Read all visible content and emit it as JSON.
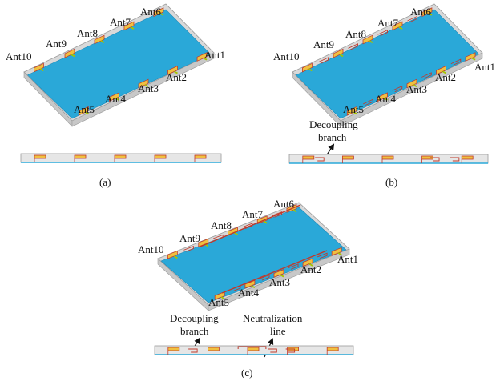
{
  "figure": {
    "antenna_labels": [
      "Ant1",
      "Ant2",
      "Ant3",
      "Ant4",
      "Ant5",
      "Ant6",
      "Ant7",
      "Ant8",
      "Ant9",
      "Ant10"
    ],
    "panels": [
      {
        "caption": "(a)",
        "annotations": []
      },
      {
        "caption": "(b)",
        "annotations": [
          {
            "text_lines": [
              "Decoupling",
              "branch"
            ]
          }
        ]
      },
      {
        "caption": "(c)",
        "annotations": [
          {
            "text_lines": [
              "Decoupling",
              "branch"
            ]
          },
          {
            "text_lines": [
              "Neutralization",
              "line"
            ]
          }
        ]
      }
    ]
  },
  "colors": {
    "ground_plane": "#2aa8d8",
    "side_frame": "#d9d9d9",
    "antenna_radiator": "#f0c040",
    "antenna_outline": "#c0392b",
    "feed_line": "#a5c400"
  }
}
